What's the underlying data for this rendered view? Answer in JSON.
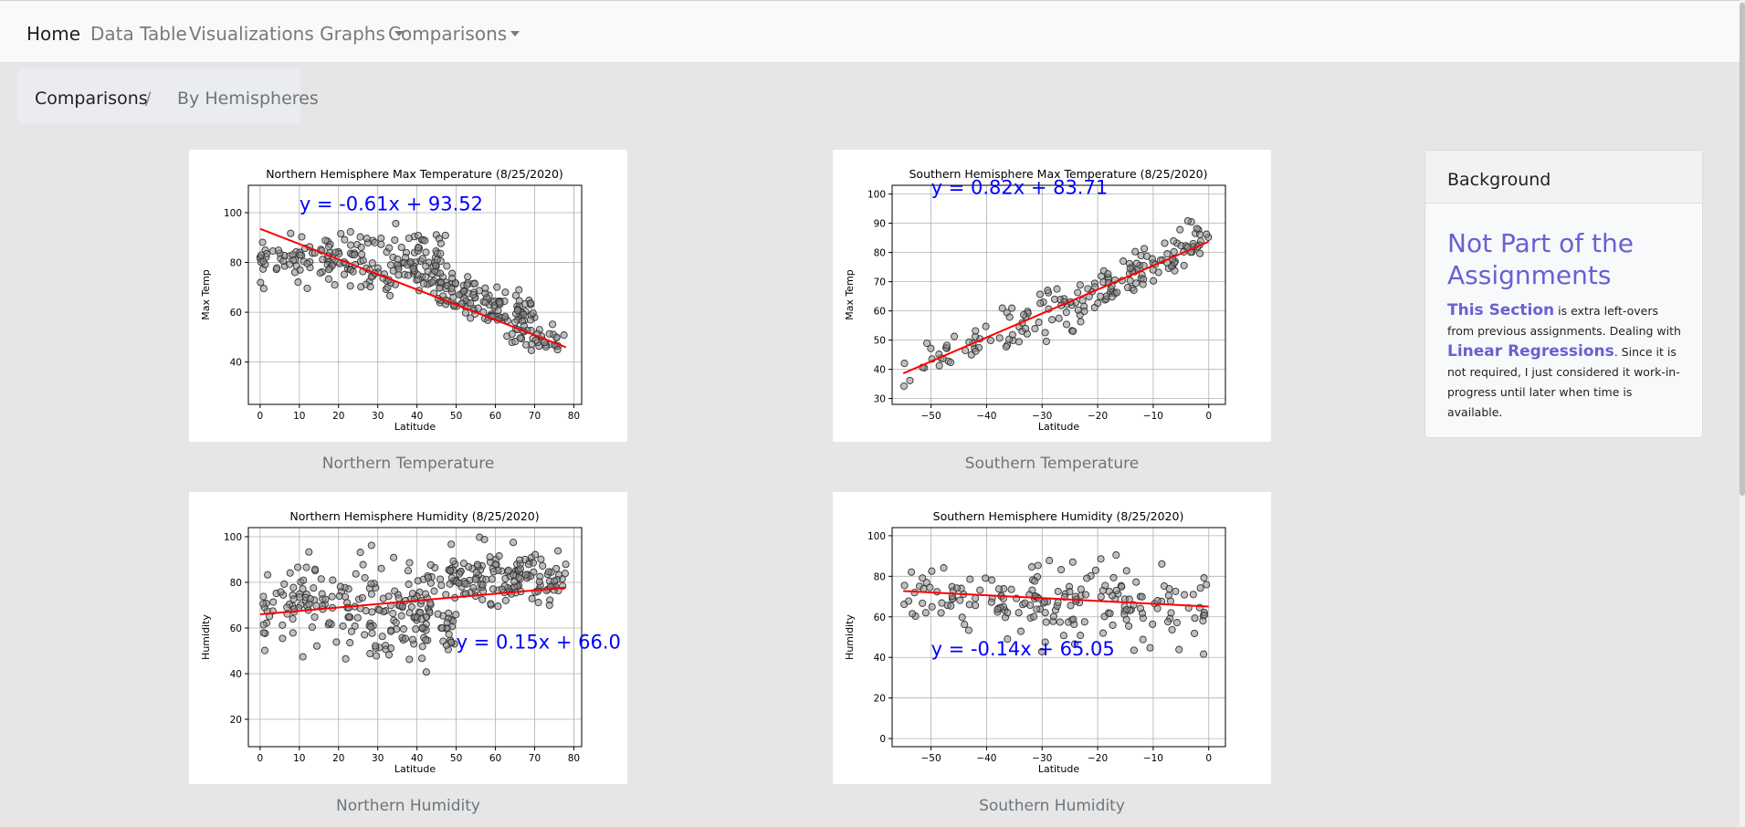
{
  "nav": {
    "home": "Home",
    "data_table": "Data Table",
    "visualizations": "Visualizations Graphs",
    "comparisons": "Comparisons"
  },
  "breadcrumb": {
    "first": "Comparisons",
    "separator": "/",
    "second": "By Hemispheres"
  },
  "captions": {
    "nt": "Northern Temperature",
    "st": "Southern Temperature",
    "nh": "Northern Humidity",
    "sh": "Southern Humidity"
  },
  "sidebar": {
    "header": "Background",
    "title": "Not Part of the Assignments",
    "section_label": "This Section",
    "text1": " is extra left-overs from previous assignments. Dealing with ",
    "linear_label": "Linear Regressions",
    "text2": ". Since it is not required, I just considered it work-in-progress until later when time is available."
  },
  "chart_data": [
    {
      "id": "nt",
      "type": "scatter",
      "title": "Northern Hemisphere Max Temperature (8/25/2020)",
      "xlabel": "Latitude",
      "ylabel": "Max Temp",
      "xlim": [
        -3,
        82
      ],
      "ylim": [
        23,
        111
      ],
      "xticks": [
        0,
        10,
        20,
        30,
        40,
        50,
        60,
        70,
        80
      ],
      "yticks": [
        40,
        60,
        80,
        100
      ],
      "grid": true,
      "regression": {
        "slope": -0.61,
        "intercept": 93.52,
        "x_range": [
          0,
          78
        ],
        "equation": "y = -0.61x + 93.52",
        "label_at": [
          10,
          101
        ]
      },
      "cloud": [
        {
          "n": 90,
          "x": [
            0,
            25
          ],
          "base": 81,
          "slope": 0,
          "spread": 9
        },
        {
          "n": 110,
          "x": [
            25,
            48
          ],
          "base": 82,
          "slope": -0.2,
          "spread": 12
        },
        {
          "n": 130,
          "x": [
            45,
            70
          ],
          "base": 70,
          "slope": -0.55,
          "spread": 10
        },
        {
          "n": 30,
          "x": [
            65,
            78
          ],
          "base": 50,
          "slope": -0.3,
          "spread": 8
        }
      ]
    },
    {
      "id": "st",
      "type": "scatter",
      "title": "Southern Hemisphere Max Temperature (8/25/2020)",
      "xlabel": "Latitude",
      "ylabel": "Max Temp",
      "xlim": [
        -57,
        3
      ],
      "ylim": [
        28,
        103
      ],
      "xticks": [
        -50,
        -40,
        -30,
        -20,
        -10,
        0
      ],
      "yticks": [
        30,
        40,
        50,
        60,
        70,
        80,
        90,
        100
      ],
      "grid": true,
      "regression": {
        "slope": 0.82,
        "intercept": 83.71,
        "x_range": [
          -55,
          0
        ],
        "equation": "y = 0.82x + 83.71",
        "label_at": [
          -50,
          100
        ]
      },
      "cloud": [
        {
          "n": 30,
          "x": [
            -55,
            -38
          ],
          "base": 83.71,
          "slope": 0.82,
          "spread": 7,
          "ref": 0
        },
        {
          "n": 60,
          "x": [
            -38,
            -20
          ],
          "base": 83.71,
          "slope": 0.82,
          "spread": 9,
          "ref": 0
        },
        {
          "n": 90,
          "x": [
            -20,
            0
          ],
          "base": 83.71,
          "slope": 0.82,
          "spread": 9,
          "ref": 0
        }
      ]
    },
    {
      "id": "nh",
      "type": "scatter",
      "title": "Northern Hemisphere Humidity (8/25/2020)",
      "xlabel": "Latitude",
      "ylabel": "Humidity",
      "xlim": [
        -3,
        82
      ],
      "ylim": [
        8,
        104
      ],
      "xticks": [
        0,
        10,
        20,
        30,
        40,
        50,
        60,
        70,
        80
      ],
      "yticks": [
        20,
        40,
        60,
        80,
        100
      ],
      "grid": true,
      "regression": {
        "slope": 0.15,
        "intercept": 66.0,
        "x_range": [
          0,
          78
        ],
        "equation": "y = 0.15x + 66.0",
        "label_at": [
          50,
          51
        ]
      },
      "cloud": [
        {
          "n": 110,
          "x": [
            0,
            30
          ],
          "base": 72,
          "slope": 0,
          "spread": 20
        },
        {
          "n": 120,
          "x": [
            28,
            50
          ],
          "base": 65,
          "slope": 0,
          "spread": 25
        },
        {
          "n": 140,
          "x": [
            48,
            78
          ],
          "base": 82,
          "slope": 0,
          "spread": 12
        }
      ]
    },
    {
      "id": "sh",
      "type": "scatter",
      "title": "Southern Hemisphere Humidity (8/25/2020)",
      "xlabel": "Latitude",
      "ylabel": "Humidity",
      "xlim": [
        -57,
        3
      ],
      "ylim": [
        -4,
        104
      ],
      "xticks": [
        -50,
        -40,
        -30,
        -20,
        -10,
        0
      ],
      "yticks": [
        0,
        20,
        40,
        60,
        80,
        100
      ],
      "grid": true,
      "regression": {
        "slope": -0.14,
        "intercept": 65.05,
        "x_range": [
          -55,
          0
        ],
        "equation": "y = -0.14x + 65.05",
        "label_at": [
          -50,
          41
        ]
      },
      "cloud": [
        {
          "n": 40,
          "x": [
            -55,
            -40
          ],
          "base": 70,
          "slope": 0,
          "spread": 16
        },
        {
          "n": 80,
          "x": [
            -40,
            -20
          ],
          "base": 68,
          "slope": 0,
          "spread": 22
        },
        {
          "n": 70,
          "x": [
            -20,
            0
          ],
          "base": 62,
          "slope": 0,
          "spread": 22
        }
      ]
    }
  ],
  "colors": {
    "regression": "#ff0000",
    "equation": "#0000ff",
    "point_fill": "#8c8c8c",
    "point_stroke": "#333333",
    "accent": "#6b5fd3"
  }
}
